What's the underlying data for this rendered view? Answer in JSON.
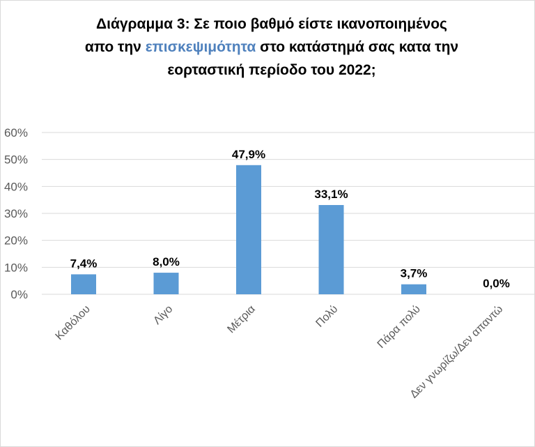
{
  "chart_data": {
    "type": "bar",
    "title": {
      "line1": "Διάγραμμα 3: Σε ποιο βαθμό είστε ικανοποιημένος",
      "line2_pre": "απο την ",
      "line2_highlight": "επισκεψιμότητα",
      "line2_post": " στο κατάστημά σας κατα την",
      "line3": "εορταστική περίοδο του 2022;"
    },
    "categories": [
      "Καθόλου",
      "Λίγο",
      "Μέτρια",
      "Πολύ",
      "Πάρα πολύ",
      "Δεν γνωρίζω/Δεν απαντώ"
    ],
    "values": [
      7.4,
      8.0,
      47.9,
      33.1,
      3.7,
      0.0
    ],
    "data_labels": [
      "7,4%",
      "8,0%",
      "47,9%",
      "33,1%",
      "3,7%",
      "0,0%"
    ],
    "y_ticks": [
      "0%",
      "10%",
      "20%",
      "30%",
      "40%",
      "50%",
      "60%"
    ],
    "ylim": [
      0,
      60
    ],
    "grid": true,
    "colors": {
      "bar": "#5b9bd5",
      "grid": "#d9d9d9",
      "highlight": "#4f81bd"
    }
  }
}
